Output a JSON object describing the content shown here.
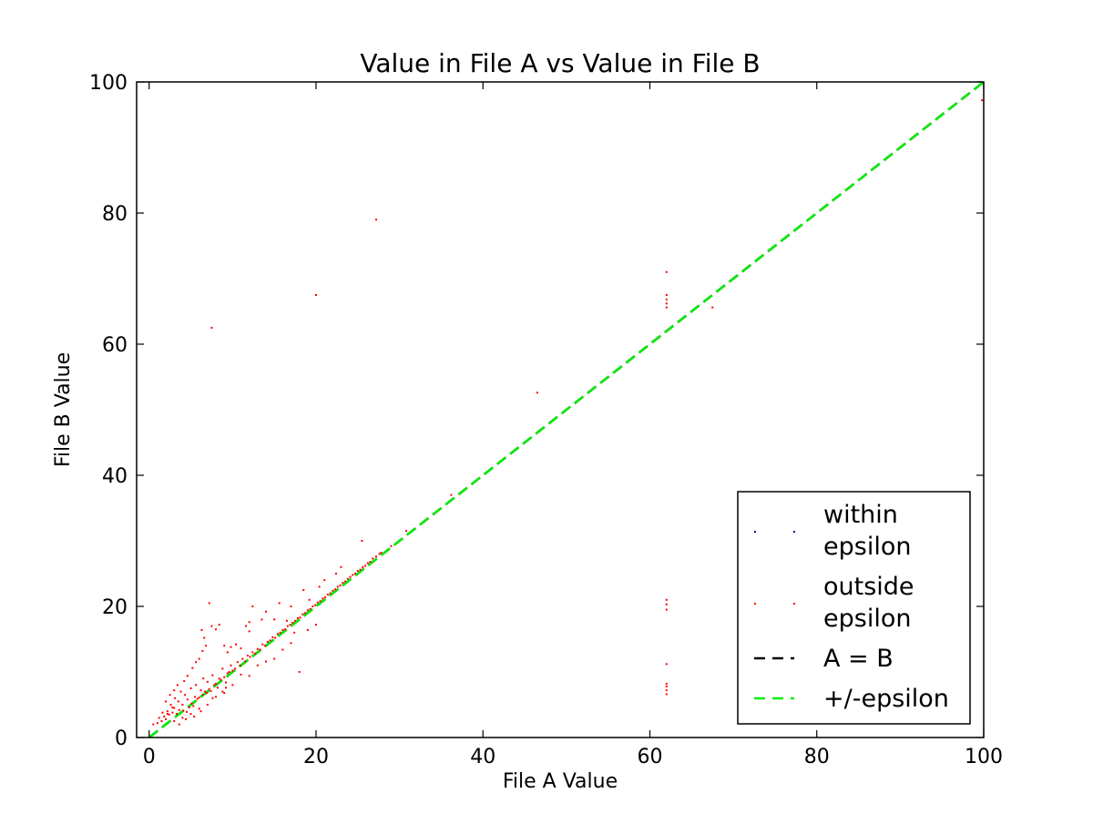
{
  "chart_data": {
    "type": "scatter",
    "title": "Value in File A vs Value in File B",
    "xlabel": "File A Value",
    "ylabel": "File B Value",
    "xlim": [
      -1.5,
      100
    ],
    "ylim": [
      0,
      100
    ],
    "xticks": [
      0,
      20,
      40,
      60,
      80,
      100
    ],
    "yticks": [
      0,
      20,
      40,
      60,
      80,
      100
    ],
    "grid": false,
    "legend_position": "lower-right",
    "series": [
      {
        "name": "within epsilon",
        "kind": "points",
        "color": "#00008b",
        "points": []
      },
      {
        "name": "outside epsilon",
        "kind": "points",
        "color": "#ff0000",
        "points": [
          [
            0.5,
            2.0
          ],
          [
            1.0,
            2.2
          ],
          [
            1.2,
            3.0
          ],
          [
            1.5,
            2.5
          ],
          [
            1.8,
            3.2
          ],
          [
            2.0,
            2.8
          ],
          [
            2.2,
            4.0
          ],
          [
            2.4,
            3.5
          ],
          [
            2.6,
            5.0
          ],
          [
            2.8,
            3.8
          ],
          [
            3.0,
            4.5
          ],
          [
            3.1,
            6.0
          ],
          [
            3.3,
            3.6
          ],
          [
            3.5,
            5.5
          ],
          [
            3.6,
            4.2
          ],
          [
            3.8,
            7.0
          ],
          [
            4.0,
            5.0
          ],
          [
            4.1,
            4.1
          ],
          [
            4.3,
            6.5
          ],
          [
            4.5,
            3.9
          ],
          [
            4.6,
            5.8
          ],
          [
            4.8,
            4.6
          ],
          [
            5.0,
            7.5
          ],
          [
            5.1,
            5.2
          ],
          [
            5.3,
            4.8
          ],
          [
            5.5,
            6.2
          ],
          [
            5.6,
            8.0
          ],
          [
            5.8,
            5.9
          ],
          [
            6.0,
            6.1
          ],
          [
            6.2,
            7.2
          ],
          [
            6.4,
            6.5
          ],
          [
            6.5,
            9.0
          ],
          [
            6.7,
            7.0
          ],
          [
            6.9,
            6.8
          ],
          [
            7.0,
            8.5
          ],
          [
            7.2,
            7.4
          ],
          [
            7.4,
            7.1
          ],
          [
            7.6,
            9.5
          ],
          [
            7.8,
            8.0
          ],
          [
            8.0,
            8.2
          ],
          [
            8.2,
            7.6
          ],
          [
            8.4,
            9.0
          ],
          [
            8.6,
            8.8
          ],
          [
            8.8,
            10.5
          ],
          [
            9.0,
            9.2
          ],
          [
            9.2,
            8.4
          ],
          [
            9.4,
            9.8
          ],
          [
            9.6,
            10.0
          ],
          [
            9.8,
            11.0
          ],
          [
            10.0,
            10.2
          ],
          [
            10.3,
            10.5
          ],
          [
            10.6,
            11.5
          ],
          [
            10.9,
            11.0
          ],
          [
            11.2,
            12.0
          ],
          [
            11.5,
            11.6
          ],
          [
            11.8,
            12.5
          ],
          [
            12.1,
            12.3
          ],
          [
            12.4,
            13.0
          ],
          [
            12.7,
            12.8
          ],
          [
            13.0,
            13.5
          ],
          [
            13.3,
            13.4
          ],
          [
            13.6,
            14.2
          ],
          [
            13.9,
            14.0
          ],
          [
            14.2,
            14.6
          ],
          [
            14.5,
            14.8
          ],
          [
            14.8,
            15.3
          ],
          [
            15.1,
            15.2
          ],
          [
            15.4,
            15.8
          ],
          [
            15.7,
            16.0
          ],
          [
            16.0,
            16.4
          ],
          [
            16.3,
            16.5
          ],
          [
            16.6,
            17.0
          ],
          [
            16.9,
            17.2
          ],
          [
            17.2,
            17.5
          ],
          [
            17.5,
            17.8
          ],
          [
            17.8,
            18.2
          ],
          [
            18.1,
            18.3
          ],
          [
            18.4,
            18.8
          ],
          [
            18.7,
            19.0
          ],
          [
            19.0,
            19.4
          ],
          [
            19.3,
            19.6
          ],
          [
            19.6,
            20.0
          ],
          [
            19.9,
            20.2
          ],
          [
            20.2,
            20.6
          ],
          [
            20.5,
            20.8
          ],
          [
            20.8,
            21.2
          ],
          [
            21.1,
            21.4
          ],
          [
            21.4,
            21.8
          ],
          [
            21.7,
            22.0
          ],
          [
            22.0,
            22.4
          ],
          [
            22.3,
            22.6
          ],
          [
            22.6,
            23.0
          ],
          [
            22.9,
            23.2
          ],
          [
            23.2,
            23.6
          ],
          [
            23.5,
            23.8
          ],
          [
            23.8,
            24.2
          ],
          [
            24.1,
            24.5
          ],
          [
            24.4,
            24.8
          ],
          [
            24.7,
            25.0
          ],
          [
            25.0,
            25.4
          ],
          [
            25.3,
            25.6
          ],
          [
            25.6,
            26.0
          ],
          [
            25.9,
            26.2
          ],
          [
            26.2,
            26.6
          ],
          [
            26.5,
            26.8
          ],
          [
            26.8,
            27.3
          ],
          [
            27.2,
            27.6
          ],
          [
            27.6,
            28.0
          ],
          [
            2.0,
            5.5
          ],
          [
            2.5,
            6.5
          ],
          [
            3.0,
            7.2
          ],
          [
            3.4,
            8.0
          ],
          [
            4.2,
            8.6
          ],
          [
            4.6,
            9.4
          ],
          [
            5.2,
            10.6
          ],
          [
            5.6,
            11.5
          ],
          [
            6.0,
            12.0
          ],
          [
            6.4,
            13.2
          ],
          [
            6.8,
            14.0
          ],
          [
            6.3,
            16.4
          ],
          [
            6.6,
            15.2
          ],
          [
            7.2,
            20.5
          ],
          [
            7.5,
            17.0
          ],
          [
            8.0,
            16.5
          ],
          [
            8.4,
            17.2
          ],
          [
            9.0,
            14.0
          ],
          [
            9.4,
            13.0
          ],
          [
            9.8,
            13.8
          ],
          [
            10.4,
            14.2
          ],
          [
            11.0,
            13.6
          ],
          [
            11.6,
            17.0
          ],
          [
            12.0,
            16.2
          ],
          [
            12.4,
            20.0
          ],
          [
            12.0,
            17.6
          ],
          [
            13.5,
            18.0
          ],
          [
            14.0,
            19.2
          ],
          [
            15.0,
            18.0
          ],
          [
            15.6,
            20.5
          ],
          [
            16.5,
            17.8
          ],
          [
            17.4,
            16.0
          ],
          [
            17.0,
            20.0
          ],
          [
            18.5,
            22.5
          ],
          [
            19.2,
            21.0
          ],
          [
            20.4,
            23.0
          ],
          [
            21.0,
            24.0
          ],
          [
            22.4,
            25.0
          ],
          [
            23.0,
            26.0
          ],
          [
            3.0,
            2.5
          ],
          [
            4.0,
            3.0
          ],
          [
            5.0,
            3.6
          ],
          [
            6.0,
            4.4
          ],
          [
            7.0,
            5.0
          ],
          [
            8.0,
            6.2
          ],
          [
            9.0,
            6.8
          ],
          [
            10.0,
            8.0
          ],
          [
            11.0,
            9.6
          ],
          [
            12.0,
            9.4
          ],
          [
            13.0,
            11.0
          ],
          [
            14.0,
            11.6
          ],
          [
            15.0,
            12.0
          ],
          [
            16.0,
            13.4
          ],
          [
            17.0,
            14.4
          ],
          [
            18.0,
            10.0
          ],
          [
            19.0,
            16.4
          ],
          [
            20.0,
            17.2
          ],
          [
            3.6,
            2.0
          ],
          [
            4.4,
            2.8
          ],
          [
            5.4,
            3.2
          ],
          [
            6.2,
            4.0
          ],
          [
            7.6,
            6.0
          ],
          [
            8.8,
            7.0
          ],
          [
            9.2,
            7.6
          ],
          [
            2.2,
            3.6
          ],
          [
            1.6,
            3.8
          ],
          [
            2.8,
            4.6
          ],
          [
            7.5,
            62.5
          ],
          [
            20.0,
            67.5
          ],
          [
            27.2,
            79.0
          ],
          [
            25.5,
            30.0
          ],
          [
            27.8,
            28.2
          ],
          [
            29.0,
            29.2
          ],
          [
            30.8,
            31.5
          ],
          [
            36.2,
            37.0
          ],
          [
            46.5,
            52.6
          ],
          [
            62.0,
            71.0
          ],
          [
            62.0,
            67.5
          ],
          [
            62.0,
            66.8
          ],
          [
            62.0,
            66.2
          ],
          [
            62.0,
            65.6
          ],
          [
            67.5,
            65.6
          ],
          [
            62.0,
            21.0
          ],
          [
            62.0,
            20.3
          ],
          [
            62.0,
            19.5
          ],
          [
            62.0,
            11.2
          ],
          [
            62.0,
            8.2
          ],
          [
            62.0,
            7.8
          ],
          [
            62.0,
            7.2
          ],
          [
            62.0,
            6.6
          ],
          [
            99.8,
            97.2
          ]
        ]
      },
      {
        "name": "A = B",
        "kind": "line",
        "color": "#000000",
        "dash": "dashed",
        "points": [
          [
            0,
            0
          ],
          [
            100,
            100
          ]
        ]
      },
      {
        "name": "+/-epsilon",
        "kind": "line",
        "color": "#00ee00",
        "dash": "dashed",
        "points": [
          [
            0,
            0
          ],
          [
            100,
            100
          ]
        ]
      }
    ],
    "legend": [
      {
        "line1": "within",
        "line2": "epsilon",
        "marker": "point",
        "color": "#00008b"
      },
      {
        "line1": "outside",
        "line2": "epsilon",
        "marker": "point",
        "color": "#ff0000"
      },
      {
        "line1": "A = B",
        "marker": "dash",
        "color": "#000000"
      },
      {
        "line1": "+/-epsilon",
        "marker": "dash",
        "color": "#00ee00"
      }
    ]
  }
}
